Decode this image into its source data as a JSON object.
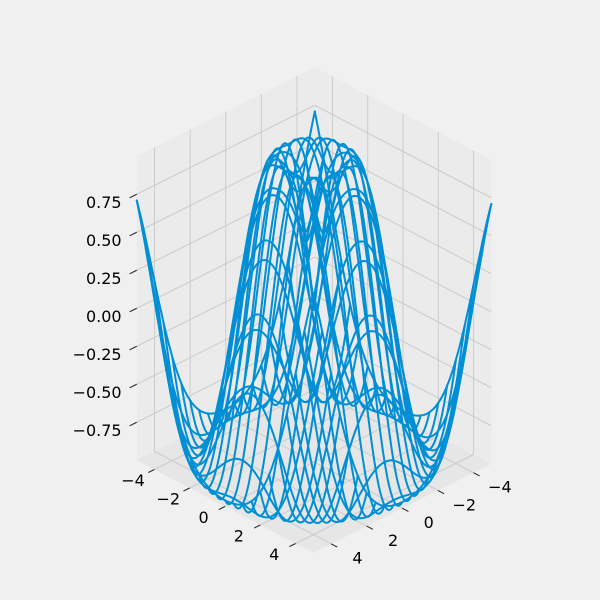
{
  "chart_data": {
    "type": "wireframe",
    "title": "",
    "xlabel": "",
    "ylabel": "",
    "zlabel": "",
    "function": "z = sin(sqrt(x^2 + y^2))",
    "xlim": [
      -5,
      5
    ],
    "ylim": [
      -5,
      5
    ],
    "zlim": [
      -0.75,
      0.75
    ],
    "grid": true,
    "x_ticks": [
      -4,
      -2,
      0,
      2,
      4
    ],
    "y_ticks": [
      -4,
      -2,
      0,
      2,
      4
    ],
    "z_ticks": [
      -0.75,
      -0.5,
      -0.25,
      0.0,
      0.25,
      0.5,
      0.75
    ],
    "x_tick_labels": [
      "−4",
      "−2",
      "0",
      "2",
      "4"
    ],
    "y_tick_labels": [
      "−4",
      "−2",
      "0",
      "2",
      "4"
    ],
    "z_tick_labels": [
      "−0.75",
      "−0.50",
      "−0.25",
      "0.00",
      "0.25",
      "0.50",
      "0.75"
    ],
    "series": [
      {
        "x": [
          -5,
          -4.5,
          -4,
          -3.5,
          -3,
          -2.5,
          -2,
          -1.5,
          -1,
          -0.5,
          0,
          0.5,
          1,
          1.5,
          2,
          2.5,
          3,
          3.5,
          4,
          4.5,
          5
        ],
        "y": [
          -5,
          -4.5,
          -4,
          -3.5,
          -3,
          -2.5,
          -2,
          -1.5,
          -1,
          -0.5,
          0,
          0.5,
          1,
          1.5,
          2,
          2.5,
          3,
          3.5,
          4,
          4.5,
          5
        ],
        "color": "#008fd5"
      }
    ],
    "colors": {
      "background": "#f0f0f0",
      "pane_bottom": "#e6e6e6",
      "pane_side": "#ebebeb",
      "grid": "#cbcbcb",
      "wire": "#008fd5"
    }
  }
}
